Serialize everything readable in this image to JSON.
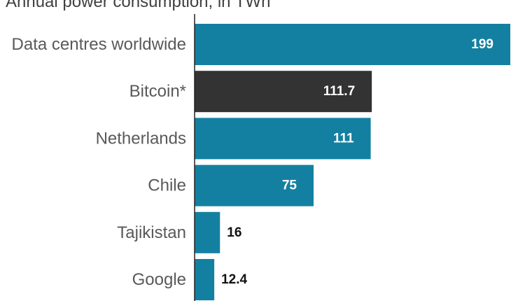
{
  "chart_data": {
    "type": "bar",
    "orientation": "horizontal",
    "subtitle": "Annual power consumption, in TWh",
    "categories": [
      "Data centres worldwide",
      "Bitcoin*",
      "Netherlands",
      "Chile",
      "Tajikistan",
      "Google"
    ],
    "values": [
      199,
      111.7,
      111,
      75,
      16,
      12.4
    ],
    "value_labels": [
      "199",
      "111.7",
      "111",
      "75",
      "16",
      "12.4"
    ],
    "bar_colors": [
      "#1380a1",
      "#333333",
      "#1380a1",
      "#1380a1",
      "#1380a1",
      "#1380a1"
    ],
    "xlim": [
      0,
      199
    ],
    "grid": false,
    "legend": "none"
  }
}
